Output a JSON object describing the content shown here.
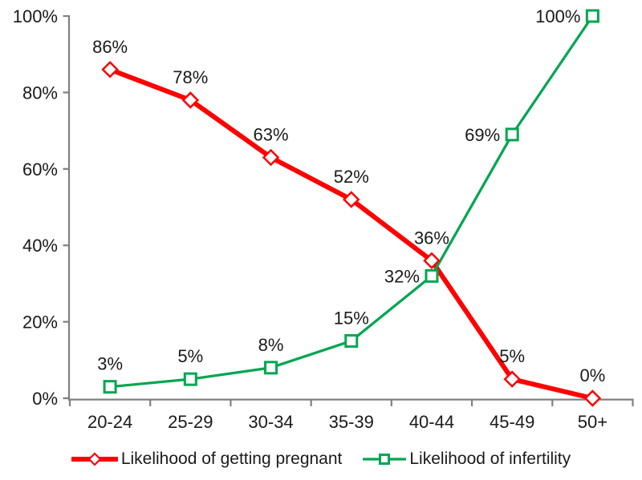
{
  "chart_data": {
    "type": "line",
    "categories": [
      "20-24",
      "25-29",
      "30-34",
      "35-39",
      "40-44",
      "45-49",
      "50+"
    ],
    "series": [
      {
        "name": "Likelihood of getting pregnant",
        "color": "#FF0000",
        "marker": "diamond",
        "line_width": 6,
        "values": [
          86,
          78,
          63,
          52,
          36,
          5,
          0
        ],
        "labels": [
          "86%",
          "78%",
          "63%",
          "52%",
          "36%",
          "5%",
          "0%"
        ],
        "label_side": [
          "above",
          "above",
          "above",
          "above",
          "above",
          "above",
          "above"
        ]
      },
      {
        "name": "Likelihood of infertility",
        "color": "#00A651",
        "marker": "square",
        "line_width": 3.25,
        "values": [
          3,
          5,
          8,
          15,
          32,
          69,
          100
        ],
        "labels": [
          "3%",
          "5%",
          "8%",
          "15%",
          "32%",
          "69%",
          "100%"
        ],
        "label_side": [
          "above",
          "above",
          "above",
          "above",
          "left",
          "left",
          "left"
        ]
      }
    ],
    "ylim": [
      0,
      100
    ],
    "y_ticks": [
      {
        "value": 0,
        "label": "0%"
      },
      {
        "value": 20,
        "label": "20%"
      },
      {
        "value": 40,
        "label": "40%"
      },
      {
        "value": 60,
        "label": "60%"
      },
      {
        "value": 80,
        "label": "80%"
      },
      {
        "value": 100,
        "label": "100%"
      }
    ],
    "grid": false,
    "legend_position": "bottom",
    "axis_color": "#808080",
    "text_color": "#1A1A1A",
    "marker_fill": "#FFFFFF"
  }
}
